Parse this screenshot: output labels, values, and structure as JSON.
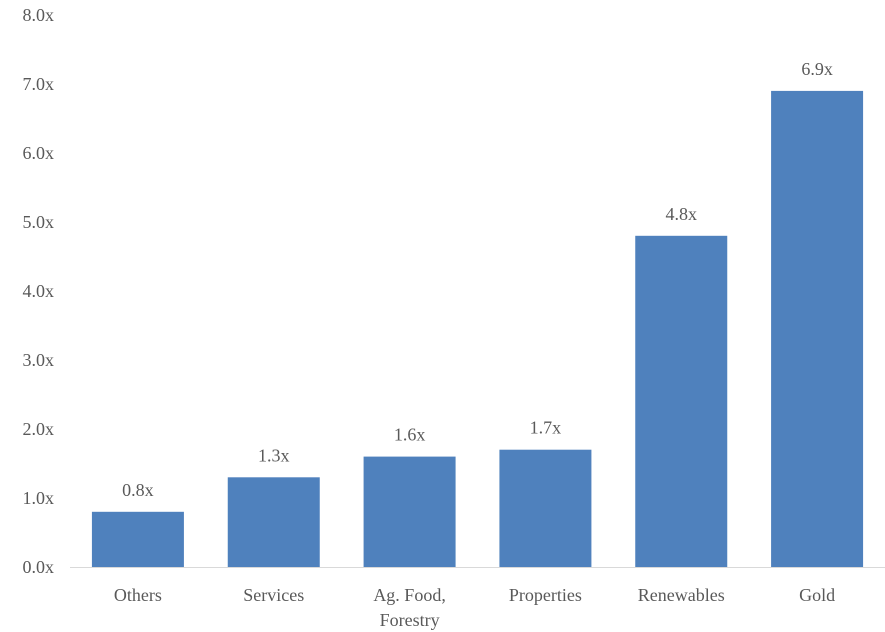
{
  "chart_data": {
    "type": "bar",
    "categories": [
      "Others",
      "Services",
      "Ag. Food, Forestry",
      "Properties",
      "Renewables",
      "Gold"
    ],
    "category_lines": [
      [
        "Others"
      ],
      [
        "Services"
      ],
      [
        "Ag. Food,",
        "Forestry"
      ],
      [
        "Properties"
      ],
      [
        "Renewables"
      ],
      [
        "Gold"
      ]
    ],
    "values": [
      0.8,
      1.3,
      1.6,
      1.7,
      4.8,
      6.9
    ],
    "data_labels": [
      "0.8x",
      "1.3x",
      "1.6x",
      "1.7x",
      "4.8x",
      "6.9x"
    ],
    "y_ticks": [
      0,
      1,
      2,
      3,
      4,
      5,
      6,
      7,
      8
    ],
    "y_tick_labels": [
      "0.0x",
      "1.0x",
      "2.0x",
      "3.0x",
      "4.0x",
      "5.0x",
      "6.0x",
      "7.0x",
      "8.0x"
    ],
    "ylim": [
      0,
      8
    ],
    "grid": false,
    "legend": "none",
    "bar_color": "#4F81BD",
    "axis_color": "#D9D9D9",
    "text_color": "#595959"
  }
}
